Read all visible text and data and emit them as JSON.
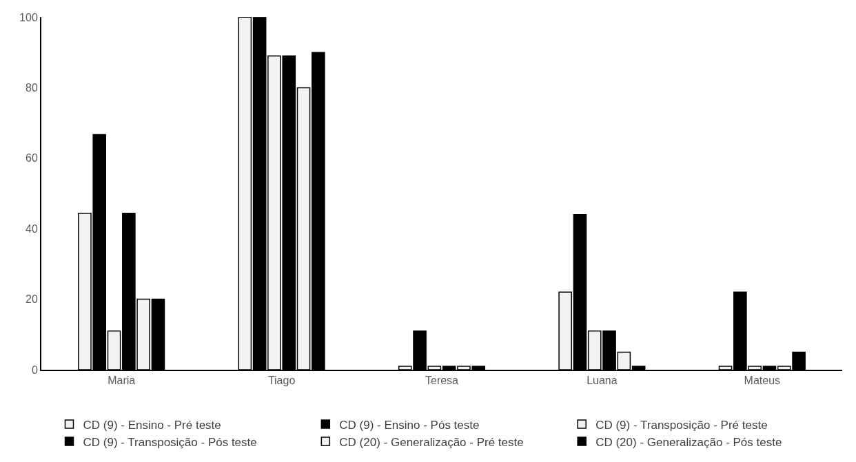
{
  "chart_data": {
    "type": "bar",
    "categories": [
      "Maria",
      "Tiago",
      "Teresa",
      "Luana",
      "Mateus"
    ],
    "series": [
      {
        "name": "CD (9) - Ensino - Pré teste",
        "color": "#f2f2f2",
        "values": [
          44.4,
          100,
          1,
          22,
          1
        ]
      },
      {
        "name": "CD (9) - Ensino - Pós teste",
        "color": "#000000",
        "values": [
          66.7,
          100,
          11,
          44,
          22
        ]
      },
      {
        "name": "CD (9) - Transposição - Pré teste",
        "color": "#f2f2f2",
        "values": [
          11,
          89,
          1,
          11,
          1
        ]
      },
      {
        "name": "CD (9) - Transposição - Pós teste",
        "color": "#000000",
        "values": [
          44.4,
          89,
          1,
          11,
          1
        ]
      },
      {
        "name": "CD (20) - Generalização - Pré teste",
        "color": "#f2f2f2",
        "values": [
          20,
          80,
          1,
          5,
          1
        ]
      },
      {
        "name": "CD (20) - Generalização - Pós teste",
        "color": "#000000",
        "values": [
          20,
          90,
          1,
          1,
          5
        ]
      }
    ],
    "ylim": [
      0,
      100
    ],
    "yticks": [
      0,
      20,
      40,
      60,
      80,
      100
    ],
    "legend": "bottom"
  }
}
